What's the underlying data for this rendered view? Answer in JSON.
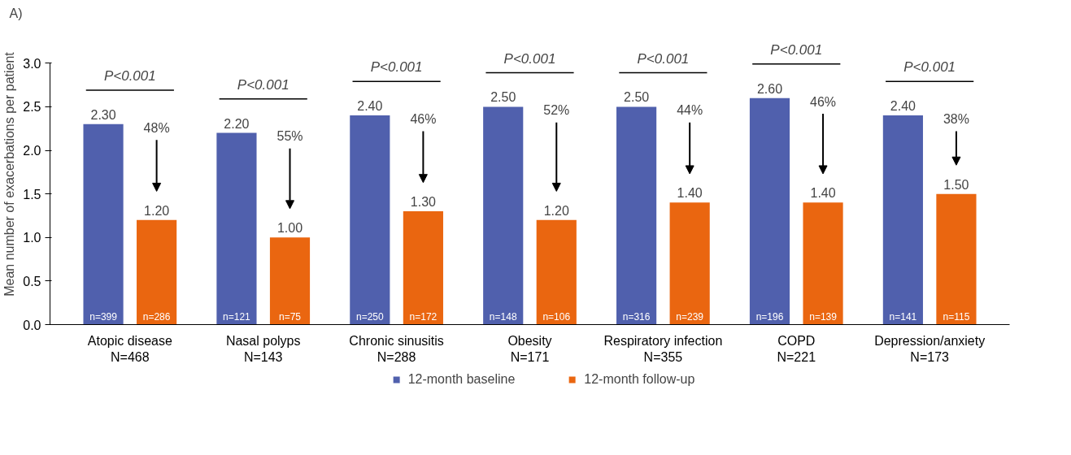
{
  "chart_data": {
    "type": "bar",
    "ylabel": "Mean number of exacerbations per patient",
    "categories": [
      "Atopic disease\nN=468",
      "Nasal polyps\nN=143",
      "Chronic sinusitis\nN=288",
      "Obesity\nN=171",
      "Respiratory infection\nN=355",
      "COPD\nN=221",
      "Depression/anxiety\nN=173"
    ],
    "series": [
      {
        "name": "12-month baseline",
        "color": "#5060ad",
        "values": [
          2.3,
          2.2,
          2.4,
          2.5,
          2.5,
          2.6,
          2.4
        ],
        "value_labels": [
          "2.30",
          "2.20",
          "2.40",
          "2.50",
          "2.50",
          "2.60",
          "2.40"
        ]
      },
      {
        "name": "12-month follow-up",
        "color": "#ea6610",
        "values": [
          1.2,
          1.0,
          1.3,
          1.2,
          1.4,
          1.4,
          1.5
        ],
        "value_labels": [
          "1.20",
          "1.00",
          "1.30",
          "1.20",
          "1.40",
          "1.40",
          "1.50"
        ]
      }
    ],
    "ylim": [
      0,
      3
    ],
    "yticks": [
      {
        "value": 0,
        "label": "0.0"
      },
      {
        "value": 0.5,
        "label": "0.5"
      },
      {
        "value": 1,
        "label": "1.0"
      },
      {
        "value": 1.5,
        "label": "1.5"
      },
      {
        "value": 2,
        "label": "2.0"
      },
      {
        "value": 2.5,
        "label": "2.5"
      },
      {
        "value": 3,
        "label": "3.0"
      }
    ],
    "grid": false,
    "legend": "bottom",
    "annotations": [
      "A)",
      "P<0.001",
      "P<0.001",
      "P<0.001",
      "P<0.001",
      "P<0.001",
      "P<0.001",
      "P<0.001",
      "48%",
      "55%",
      "46%",
      "52%",
      "44%",
      "46%",
      "38%",
      "n=399",
      "n=286",
      "n=121",
      "n=75",
      "n=250",
      "n=172",
      "n=148",
      "n=106",
      "n=316",
      "n=239",
      "n=196",
      "n=139",
      "n=141",
      "n=115"
    ]
  }
}
